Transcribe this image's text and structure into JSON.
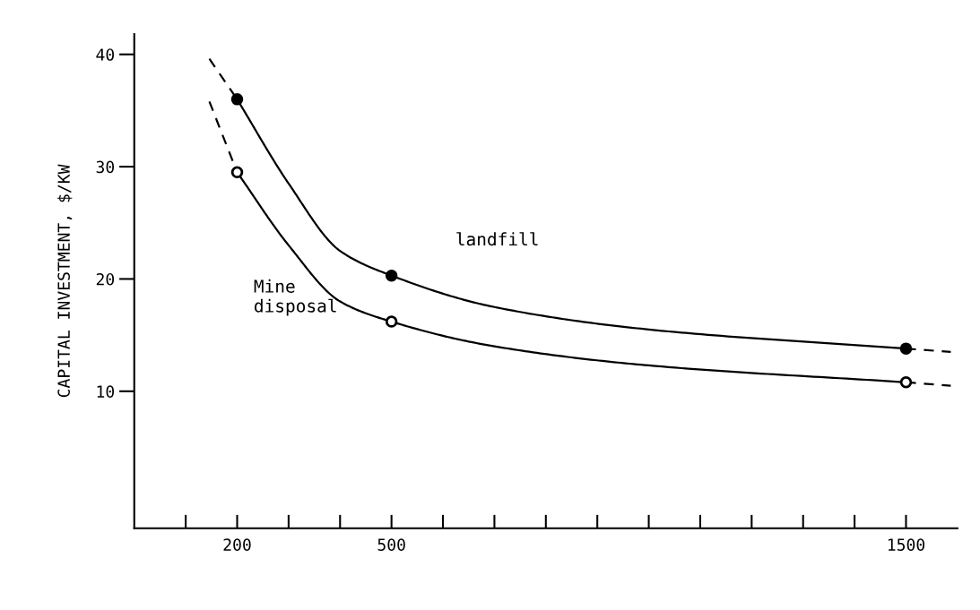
{
  "chart_data": {
    "type": "line",
    "ylabel": "CAPITAL INVESTMENT, $/KW",
    "xlim": [
      0,
      1600
    ],
    "ylim": [
      -2.2,
      41.8
    ],
    "xticks": [
      {
        "value": 100,
        "label": null
      },
      200,
      {
        "value": 300,
        "label": null
      },
      {
        "value": 400,
        "label": null
      },
      500,
      {
        "value": 600,
        "label": null
      },
      {
        "value": 700,
        "label": null
      },
      {
        "value": 800,
        "label": null
      },
      {
        "value": 900,
        "label": null
      },
      {
        "value": 1000,
        "label": null
      },
      {
        "value": 1100,
        "label": null
      },
      {
        "value": 1200,
        "label": null
      },
      {
        "value": 1300,
        "label": null
      },
      {
        "value": 1400,
        "label": null
      },
      1500
    ],
    "yticks": [
      10,
      20,
      30,
      40
    ],
    "grid": false,
    "legend": false,
    "series": [
      {
        "type": "line",
        "color": "#000000",
        "line_style": "solid",
        "x": [
          200,
          300,
          400,
          500,
          700,
          1000,
          1500
        ],
        "values": [
          36,
          28.5,
          22.5,
          20.3,
          17.5,
          15.5,
          13.8
        ]
      },
      {
        "type": "line",
        "color": "#000000",
        "line_style": "dashed",
        "x": [
          146,
          200
        ],
        "values": [
          39.6,
          36
        ]
      },
      {
        "type": "line",
        "color": "#000000",
        "line_style": "dashed",
        "x": [
          1500,
          1587
        ],
        "values": [
          13.8,
          13.5
        ]
      },
      {
        "type": "line",
        "color": "#000000",
        "line_style": "solid",
        "x": [
          200,
          300,
          400,
          500,
          700,
          1000,
          1500
        ],
        "values": [
          29.5,
          23,
          18,
          16.2,
          14,
          12.3,
          10.8
        ]
      },
      {
        "type": "line",
        "color": "#000000",
        "line_style": "dashed",
        "x": [
          146,
          200
        ],
        "values": [
          35.8,
          29.5
        ]
      },
      {
        "type": "line",
        "color": "#000000",
        "line_style": "dashed",
        "x": [
          1500,
          1587
        ],
        "values": [
          10.8,
          10.5
        ]
      },
      {
        "type": "scatter",
        "color": "#000000",
        "marker": "circle",
        "x": [
          200,
          500,
          1500
        ],
        "values": [
          36,
          20.3,
          13.8
        ]
      },
      {
        "type": "scatter",
        "color": "#ffffff",
        "marker": "circle",
        "x": [
          200,
          500,
          1500
        ],
        "values": [
          29.5,
          16.2,
          10.8
        ]
      }
    ],
    "annotations": [
      "landfill",
      "Mine\ndisposal"
    ]
  }
}
